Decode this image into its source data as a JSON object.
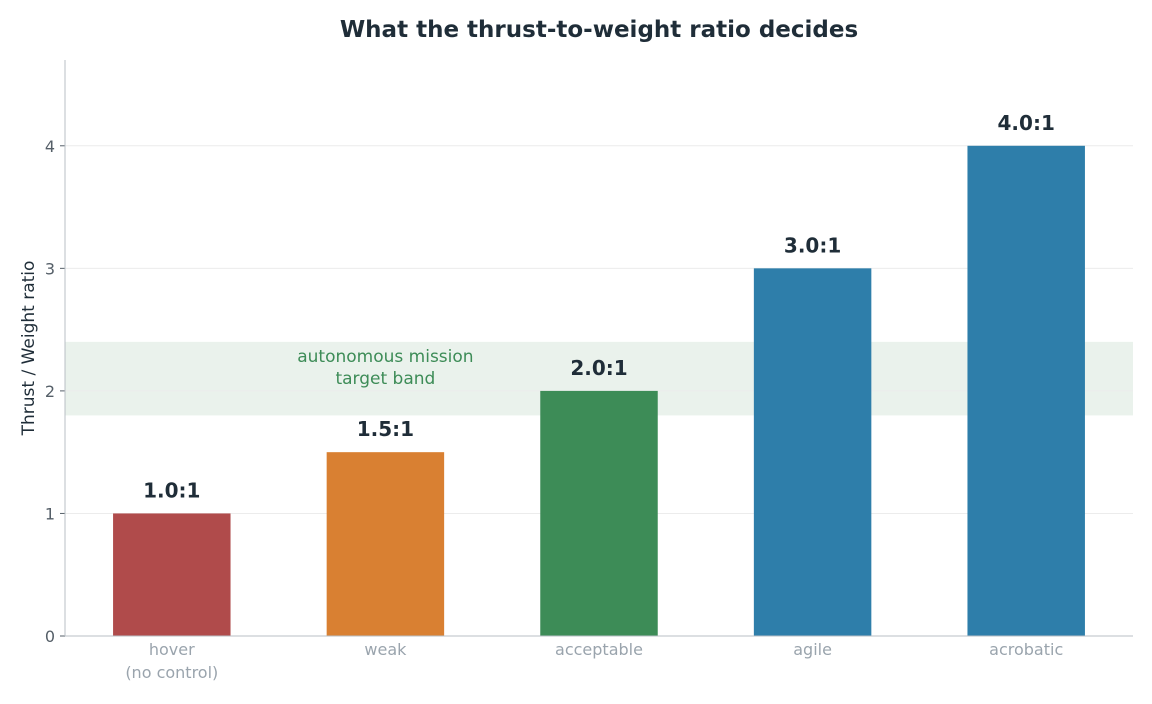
{
  "chart_data": {
    "type": "bar",
    "title": "What the thrust-to-weight ratio decides",
    "ylabel": "Thrust / Weight ratio",
    "xlabel": "",
    "ylim": [
      0,
      4.7
    ],
    "yticks": [
      "0",
      "1",
      "2",
      "3",
      "4"
    ],
    "grid": "horizontal",
    "categories": [
      [
        "hover",
        "(no control)"
      ],
      [
        "weak"
      ],
      [
        "acceptable"
      ],
      [
        "agile"
      ],
      [
        "acrobatic"
      ]
    ],
    "values": [
      1.0,
      1.5,
      2.0,
      3.0,
      4.0
    ],
    "value_labels": [
      "1.0:1",
      "1.5:1",
      "2.0:1",
      "3.0:1",
      "4.0:1"
    ],
    "colors": [
      "#b04b4b",
      "#d98032",
      "#3d8c57",
      "#2e7eaa",
      "#2e7eaa"
    ],
    "band": {
      "from": 1.8,
      "to": 2.4,
      "color": "#eaf2ec",
      "label": [
        "autonomous mission",
        "target band"
      ],
      "label_color": "#3d8c57"
    }
  }
}
